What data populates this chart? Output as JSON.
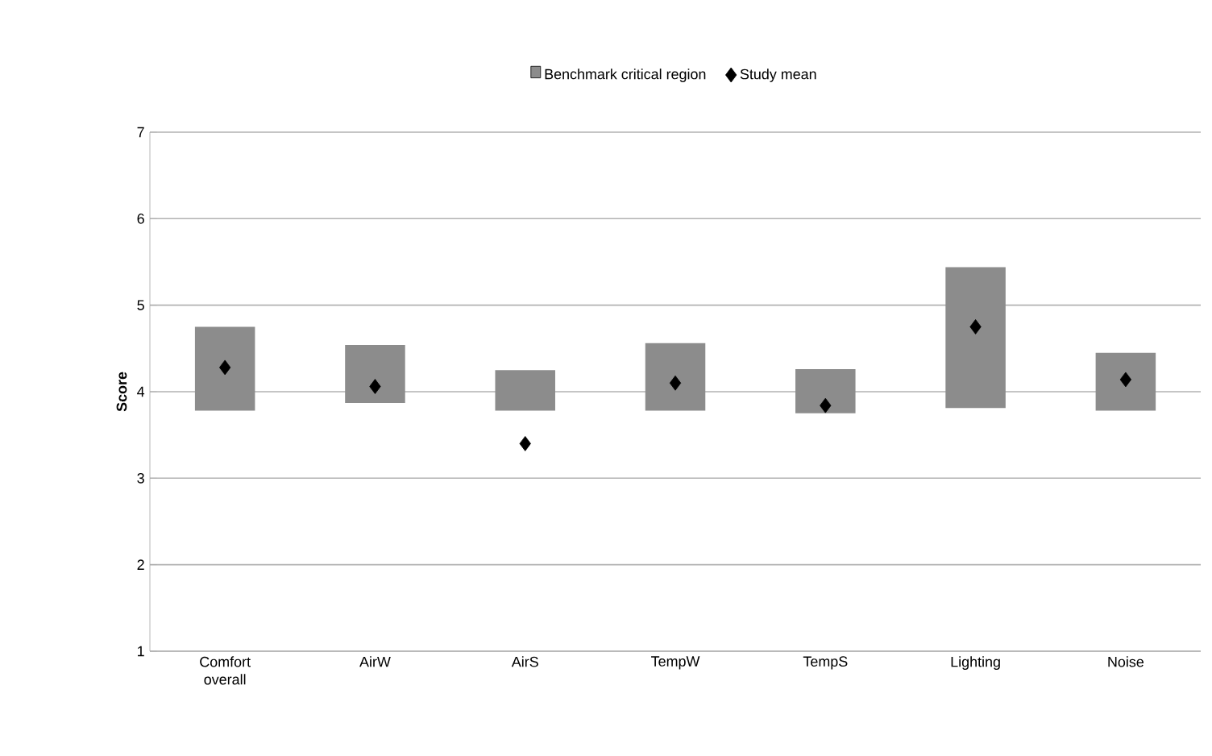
{
  "chart_data": {
    "type": "bar",
    "ylabel": "Score",
    "categories": [
      "Comfort overall",
      "AirW",
      "AirS",
      "TempW",
      "TempS",
      "Lighting",
      "Noise"
    ],
    "series": [
      {
        "name": "Benchmark critical region",
        "color": "#8c8c8c",
        "base": [
          3.78,
          3.87,
          3.78,
          3.78,
          3.75,
          3.81,
          3.78
        ],
        "values": [
          0.97,
          0.67,
          0.47,
          0.78,
          0.51,
          1.63,
          0.67
        ]
      },
      {
        "name": "Study mean",
        "type": "scatter",
        "color": "#000000",
        "marker": "diamond",
        "x": [
          "Comfort overall",
          "AirW",
          "AirS",
          "TempW",
          "TempS",
          "Lighting",
          "Noise"
        ],
        "values": [
          4.28,
          4.06,
          3.4,
          4.1,
          3.84,
          4.75,
          4.14
        ]
      }
    ],
    "ylim": [
      1,
      7
    ],
    "yticks": [
      1,
      2,
      3,
      4,
      5,
      6,
      7
    ],
    "grid": "y",
    "legend": "top"
  }
}
